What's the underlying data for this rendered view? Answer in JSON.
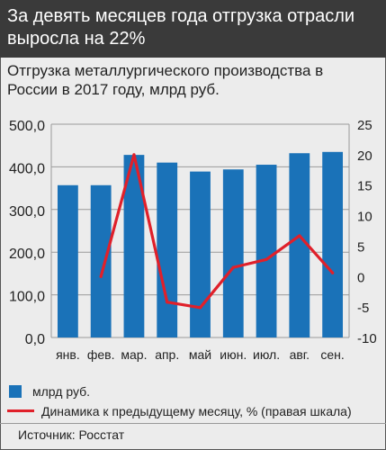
{
  "headline": "За девять месяцев года отгрузка отрасли выросла на 22%",
  "source": "Источник: Росстат",
  "colors": {
    "bar": "#1a72b8",
    "line": "#e0202a",
    "header_bg": "#3a3a3a",
    "background": "#ececec"
  },
  "chart_data": {
    "type": "bar",
    "title": "Отгрузка металлургического производства в России в 2017 году, млрд руб.",
    "categories": [
      "янв.",
      "фев.",
      "мар.",
      "апр.",
      "май",
      "июн.",
      "июл.",
      "авг.",
      "сен."
    ],
    "series": [
      {
        "name": "млрд руб.",
        "type": "bar",
        "axis": "left",
        "values": [
          357,
          357,
          428,
          410,
          389,
          394,
          405,
          432,
          435
        ]
      },
      {
        "name": "Динамика к предыдущему месяцу, % (правая шкала)",
        "type": "line",
        "axis": "right",
        "values": [
          null,
          0.0,
          20.0,
          -4.2,
          -5.1,
          1.5,
          2.8,
          6.7,
          0.6
        ]
      }
    ],
    "y_left": {
      "range": [
        0,
        500
      ],
      "ticks": [
        0,
        100,
        200,
        300,
        400,
        500
      ],
      "tick_labels": [
        "0,0",
        "100,0",
        "200,0",
        "300,0",
        "400,0",
        "500,0"
      ]
    },
    "y_right": {
      "range": [
        -10,
        25
      ],
      "ticks": [
        -10,
        -5,
        0,
        5,
        10,
        15,
        20,
        25
      ],
      "tick_labels": [
        "-10",
        "-5",
        "0",
        "5",
        "10",
        "15",
        "20",
        "25"
      ]
    },
    "grid": true,
    "legend_position": "bottom"
  }
}
